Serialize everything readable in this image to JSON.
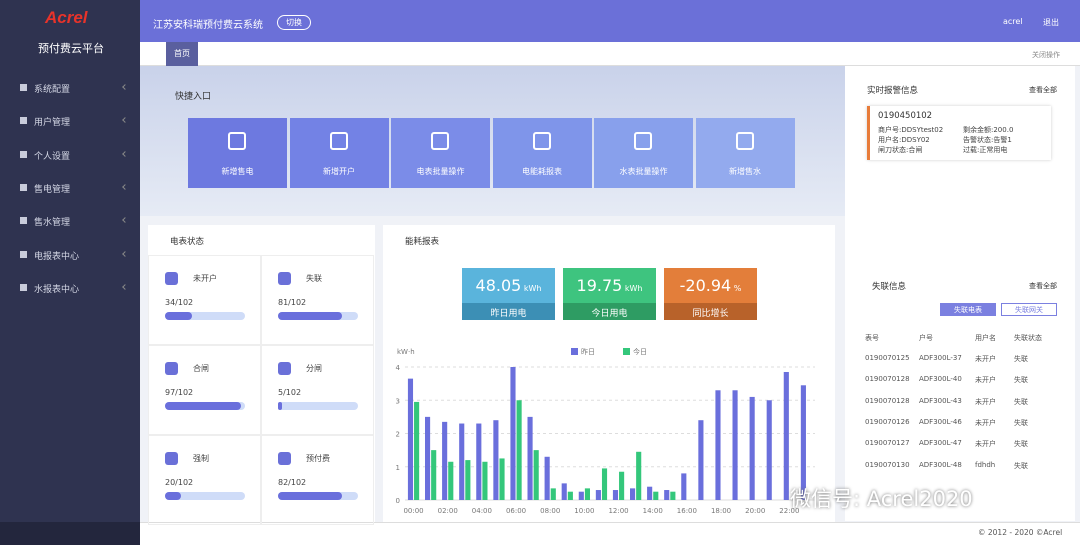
{
  "sidebar": {
    "logo": "Acrel",
    "platform": "预付费云平台",
    "menu": [
      "系统配置",
      "用户管理",
      "个人设置",
      "售电管理",
      "售水管理",
      "电报表中心",
      "水报表中心"
    ]
  },
  "header": {
    "system": "江苏安科瑞预付费云系统",
    "switch": "切换",
    "user": "acrel",
    "logout": "退出"
  },
  "tabs": {
    "home": "首页",
    "close": "关闭操作"
  },
  "quick": {
    "title": "快捷入口",
    "items": [
      "新增售电",
      "新增开户",
      "电表批量操作",
      "电能耗报表",
      "水表批量操作",
      "新增售水"
    ]
  },
  "meter_status": {
    "title": "电表状态",
    "items": [
      {
        "label": "未开户",
        "text": "34/102",
        "count": 34,
        "total": 102
      },
      {
        "label": "失联",
        "text": "81/102",
        "count": 81,
        "total": 102
      },
      {
        "label": "合闸",
        "text": "97/102",
        "count": 97,
        "total": 102
      },
      {
        "label": "分闸",
        "text": "5/102",
        "count": 5,
        "total": 102
      },
      {
        "label": "强制",
        "text": "20/102",
        "count": 20,
        "total": 102
      },
      {
        "label": "预付费",
        "text": "82/102",
        "count": 82,
        "total": 102
      }
    ]
  },
  "energy": {
    "title": "能耗报表",
    "kpis": [
      {
        "value": 48.05,
        "unit": "kWh",
        "label": "昨日用电",
        "color": "#5ab4dc",
        "dark": "#3c8fb5"
      },
      {
        "value": 19.75,
        "unit": "kWh",
        "label": "今日用电",
        "color": "#3ec47f",
        "dark": "#2e9c63"
      },
      {
        "value": -20.94,
        "unit": "%",
        "label": "同比增长",
        "color": "#e37e3a",
        "dark": "#b8622a"
      }
    ]
  },
  "chart_data": {
    "type": "bar",
    "y_label": "kW·h",
    "categories": [
      "00:00",
      null,
      "02:00",
      null,
      "04:00",
      null,
      "06:00",
      null,
      "08:00",
      null,
      "10:00",
      null,
      "12:00",
      null,
      "14:00",
      null,
      "16:00",
      null,
      "18:00",
      null,
      "20:00",
      null,
      "22:00",
      null
    ],
    "series": [
      {
        "name": "昨日",
        "color": "#6a6fdc",
        "values": [
          3.65,
          2.5,
          2.35,
          2.3,
          2.3,
          2.4,
          4.0,
          2.5,
          1.3,
          0.5,
          0.25,
          0.3,
          0.3,
          0.35,
          0.4,
          0.3,
          0.8,
          2.4,
          3.3,
          3.3,
          3.1,
          3.0,
          3.85,
          3.45
        ]
      },
      {
        "name": "今日",
        "color": "#34c77b",
        "values": [
          2.95,
          1.5,
          1.15,
          1.2,
          1.15,
          1.25,
          3.0,
          1.5,
          0.35,
          0.25,
          0.35,
          0.95,
          0.85,
          1.45,
          0.25,
          0.25,
          null,
          null,
          null,
          null,
          null,
          null,
          null,
          null
        ]
      }
    ],
    "ylim": [
      0,
      4
    ],
    "yticks": [
      0,
      1,
      2,
      3,
      4
    ],
    "grid": true
  },
  "alarm": {
    "title": "实时报警信息",
    "view_all": "查看全部",
    "id": "0190450102",
    "fields": [
      "商户号:DDSYtest02",
      "剩余金额:200.0",
      "用户名:DDSY02",
      "告警状态:告警1",
      "闸刀状态:合闸",
      "过载:正常用电"
    ]
  },
  "offline": {
    "title": "失联信息",
    "view_all": "查看全部",
    "buttons": [
      "失联电表",
      "失联网关"
    ],
    "table": {
      "header": [
        "表号",
        "户号",
        "用户名",
        "失联状态"
      ],
      "rows": [
        [
          "0190070125",
          "ADF300L-37",
          "未开户",
          "失联"
        ],
        [
          "0190070128",
          "ADF300L-40",
          "未开户",
          "失联"
        ],
        [
          "0190070128",
          "ADF300L-43",
          "未开户",
          "失联"
        ],
        [
          "0190070126",
          "ADF300L-46",
          "未开户",
          "失联"
        ],
        [
          "0190070127",
          "ADF300L-47",
          "未开户",
          "失联"
        ],
        [
          "0190070130",
          "ADF300L-48",
          "fdhdh",
          "失联"
        ]
      ]
    }
  },
  "footer": "© 2012 - 2020 ©Acrel",
  "watermark": "微信号: Acrel2020"
}
